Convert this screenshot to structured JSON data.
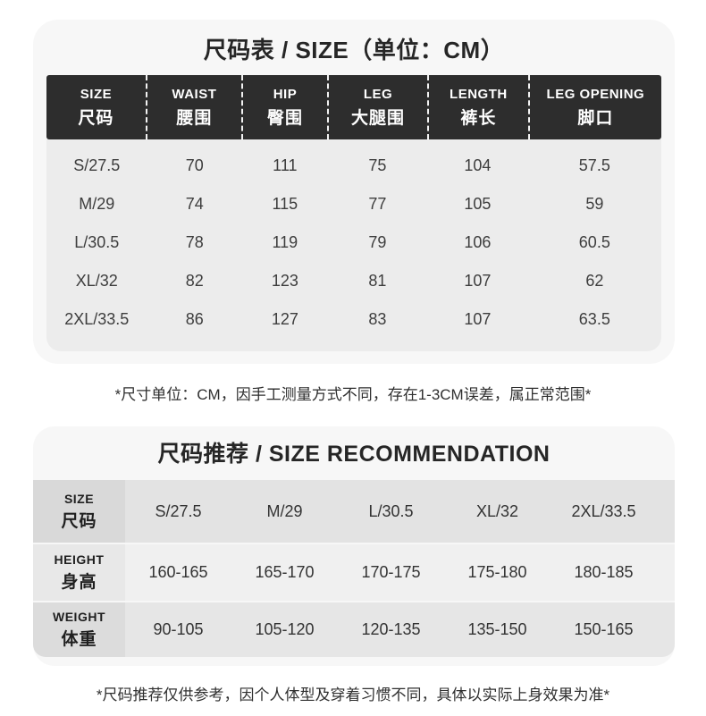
{
  "colors": {
    "page_bg": "#ffffff",
    "card_bg": "#f7f7f7",
    "table_header_bg": "#2d2d2d",
    "table_header_text": "#ffffff",
    "table_body_bg": "#ececec",
    "rec_row_bgs": [
      "#e3e3e3",
      "#f0f0f0",
      "#e6e6e6"
    ],
    "rec_label_bgs": [
      "#d9d9d9",
      "#e8e8e8",
      "#dcdcdc"
    ]
  },
  "size_chart": {
    "title": "尺码表 / SIZE（单位：CM）",
    "columns": [
      {
        "en": "SIZE",
        "cn": "尺码"
      },
      {
        "en": "WAIST",
        "cn": "腰围"
      },
      {
        "en": "HIP",
        "cn": "臀围"
      },
      {
        "en": "LEG",
        "cn": "大腿围"
      },
      {
        "en": "LENGTH",
        "cn": "裤长"
      },
      {
        "en": "LEG OPENING",
        "cn": "脚口"
      }
    ],
    "rows": [
      [
        "S/27.5",
        "70",
        "111",
        "75",
        "104",
        "57.5"
      ],
      [
        "M/29",
        "74",
        "115",
        "77",
        "105",
        "59"
      ],
      [
        "L/30.5",
        "78",
        "119",
        "79",
        "106",
        "60.5"
      ],
      [
        "XL/32",
        "82",
        "123",
        "81",
        "107",
        "62"
      ],
      [
        "2XL/33.5",
        "86",
        "127",
        "83",
        "107",
        "63.5"
      ]
    ],
    "note": "*尺寸单位：CM，因手工测量方式不同，存在1-3CM误差，属正常范围*"
  },
  "size_recommendation": {
    "title": "尺码推荐 / SIZE RECOMMENDATION",
    "rows": [
      {
        "label_en": "SIZE",
        "label_cn": "尺码",
        "values": [
          "S/27.5",
          "M/29",
          "L/30.5",
          "XL/32",
          "2XL/33.5"
        ]
      },
      {
        "label_en": "HEIGHT",
        "label_cn": "身高",
        "values": [
          "160-165",
          "165-170",
          "170-175",
          "175-180",
          "180-185"
        ]
      },
      {
        "label_en": "WEIGHT",
        "label_cn": "体重",
        "values": [
          "90-105",
          "105-120",
          "120-135",
          "135-150",
          "150-165"
        ]
      }
    ],
    "note": "*尺码推荐仅供参考，因个人体型及穿着习惯不同，具体以实际上身效果为准*"
  }
}
